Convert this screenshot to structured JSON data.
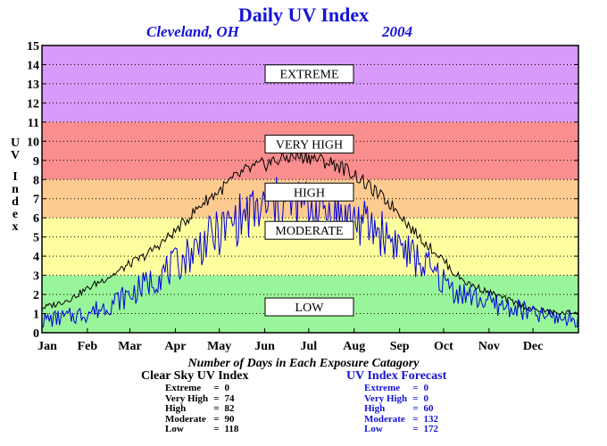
{
  "header": {
    "title": "Daily UV Index",
    "location": "Cleveland, OH",
    "year": "2004"
  },
  "footer": {
    "caption": "Number of Days in Each Exposure Catagory",
    "clear_sky": {
      "title": "Clear Sky UV Index",
      "rows": [
        {
          "name": "Extreme",
          "eq": "=",
          "value": "0"
        },
        {
          "name": "Very High",
          "eq": "=",
          "value": "74"
        },
        {
          "name": "High",
          "eq": "=",
          "value": "82"
        },
        {
          "name": "Moderate",
          "eq": "=",
          "value": "90"
        },
        {
          "name": "Low",
          "eq": "=",
          "value": "118"
        }
      ]
    },
    "forecast": {
      "title": "UV Index Forecast",
      "rows": [
        {
          "name": "Extreme",
          "eq": "=",
          "value": "0"
        },
        {
          "name": "Very High",
          "eq": "=",
          "value": "0"
        },
        {
          "name": "High",
          "eq": "=",
          "value": "60"
        },
        {
          "name": "Moderate",
          "eq": "=",
          "value": "132"
        },
        {
          "name": "Low",
          "eq": "=",
          "value": "172"
        }
      ]
    }
  },
  "chart_data": {
    "type": "line",
    "title": "Daily UV Index",
    "ylabel": "UV Index",
    "ylim": [
      0,
      15
    ],
    "yticks": [
      "0",
      "1",
      "2",
      "3",
      "4",
      "5",
      "6",
      "7",
      "8",
      "9",
      "10",
      "11",
      "12",
      "13",
      "14",
      "15"
    ],
    "xlim": [
      0,
      366
    ],
    "months": [
      "Jan",
      "Feb",
      "Mar",
      "Apr",
      "May",
      "Jun",
      "Jul",
      "Aug",
      "Sep",
      "Oct",
      "Nov",
      "Dec"
    ],
    "month_start_days": [
      0,
      31,
      60,
      91,
      121,
      152,
      182,
      213,
      244,
      274,
      305,
      335
    ],
    "grid": true,
    "bands": [
      {
        "label": "LOW",
        "from": 0,
        "to": 3,
        "color": "#99f599",
        "label_y": 2
      },
      {
        "label": "MODERATE",
        "from": 3,
        "to": 6,
        "color": "#fefe9f",
        "label_y": 6
      },
      {
        "label": "HIGH",
        "from": 6,
        "to": 8,
        "color": "#fdcb8f",
        "label_y": 8
      },
      {
        "label": "VERY HIGH",
        "from": 8,
        "to": 11,
        "color": "#fa8e8e",
        "label_y": 10.5
      },
      {
        "label": "EXTREME",
        "from": 11,
        "to": 15,
        "color": "#d99bfb",
        "label_y": 14.5
      }
    ],
    "series": [
      {
        "name": "Clear Sky UV Index",
        "color": "#000000",
        "x": [
          0,
          10,
          20,
          31,
          40,
          50,
          60,
          70,
          80,
          91,
          100,
          110,
          121,
          130,
          140,
          152,
          160,
          170,
          182,
          190,
          200,
          213,
          220,
          230,
          244,
          250,
          260,
          274,
          280,
          290,
          305,
          315,
          325,
          335,
          345,
          355,
          365
        ],
        "y": [
          1.3,
          1.5,
          1.8,
          2.3,
          2.7,
          3.1,
          3.6,
          4.0,
          4.6,
          5.3,
          6.0,
          6.8,
          7.4,
          8.0,
          8.5,
          8.8,
          9.0,
          9.2,
          9.2,
          9.0,
          8.8,
          8.3,
          7.8,
          7.2,
          6.3,
          5.6,
          4.8,
          3.8,
          3.2,
          2.6,
          2.1,
          1.8,
          1.5,
          1.2,
          1.1,
          1.0,
          1.1
        ]
      },
      {
        "name": "UV Index Forecast",
        "color": "#0000dd",
        "x": [
          0,
          10,
          20,
          31,
          40,
          50,
          60,
          70,
          80,
          91,
          100,
          110,
          121,
          130,
          140,
          152,
          160,
          170,
          182,
          190,
          200,
          213,
          220,
          230,
          244,
          250,
          260,
          274,
          280,
          290,
          305,
          315,
          325,
          335,
          345,
          355,
          365
        ],
        "y": [
          0.6,
          0.7,
          0.8,
          1.0,
          1.2,
          1.6,
          1.9,
          2.4,
          2.9,
          3.4,
          4.0,
          4.6,
          5.1,
          5.6,
          6.0,
          6.3,
          6.5,
          6.6,
          6.5,
          6.3,
          6.1,
          5.8,
          5.5,
          5.2,
          4.5,
          4.0,
          3.5,
          2.6,
          2.2,
          1.9,
          1.5,
          1.3,
          1.2,
          0.9,
          0.8,
          0.7,
          0.7
        ]
      }
    ]
  }
}
